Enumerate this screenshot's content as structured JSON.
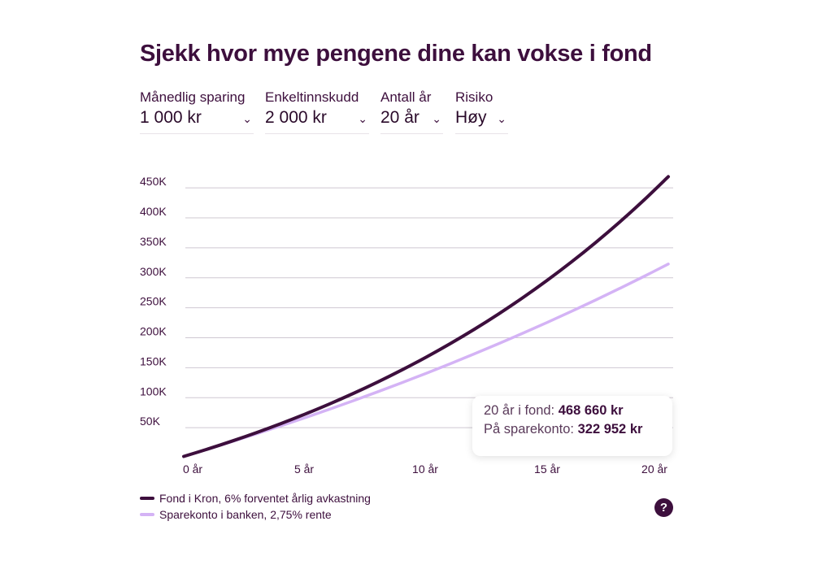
{
  "title": "Sjekk hvor mye pengene dine kan vokse i fond",
  "controls": [
    {
      "label": "Månedlig sparing",
      "value": "1 000 kr"
    },
    {
      "label": "Enkeltinnskudd",
      "value": "2 000 kr"
    },
    {
      "label": "Antall år",
      "value": "20 år"
    },
    {
      "label": "Risiko",
      "value": "Høy"
    }
  ],
  "tooltip": {
    "fund_label": "20 år i fond:",
    "fund_value": "468 660 kr",
    "bank_label": "På sparekonto:",
    "bank_value": "322 952 kr"
  },
  "help_label": "?",
  "chart_data": {
    "type": "line",
    "x": [
      0,
      1,
      2,
      3,
      4,
      5,
      6,
      7,
      8,
      9,
      10,
      11,
      12,
      13,
      14,
      15,
      16,
      17,
      18,
      19,
      20
    ],
    "xticks": [
      0,
      5,
      10,
      15,
      20
    ],
    "xtick_labels": [
      "0 år",
      "5 år",
      "10 år",
      "15 år",
      "20 år"
    ],
    "yticks": [
      50000,
      100000,
      150000,
      200000,
      250000,
      300000,
      350000,
      400000,
      450000
    ],
    "ytick_labels": [
      "50K",
      "100K",
      "150K",
      "200K",
      "250K",
      "300K",
      "350K",
      "400K",
      "450K"
    ],
    "xlim": [
      0,
      20
    ],
    "ylim": [
      0,
      475000
    ],
    "grid": "horizontal",
    "legend_position": "bottom-left",
    "series": [
      {
        "name": "Fond i Kron, 6% forventet årlig avkastning",
        "color": "#3d0f3d",
        "values": [
          2000,
          14459,
          27686,
          41729,
          56639,
          72468,
          89273,
          107115,
          126057,
          146167,
          167518,
          190186,
          214252,
          239801,
          266929,
          295727,
          326302,
          358763,
          393227,
          429816,
          468660
        ]
      },
      {
        "name": "Sparekonto i banken, 2,75% rente",
        "color": "#d4b3f5",
        "values": [
          2000,
          14209,
          26758,
          39655,
          52910,
          66534,
          80540,
          94936,
          109735,
          124942,
          140573,
          156640,
          173153,
          190130,
          207577,
          225511,
          243944,
          262889,
          282361,
          302376,
          322952
        ]
      }
    ]
  }
}
